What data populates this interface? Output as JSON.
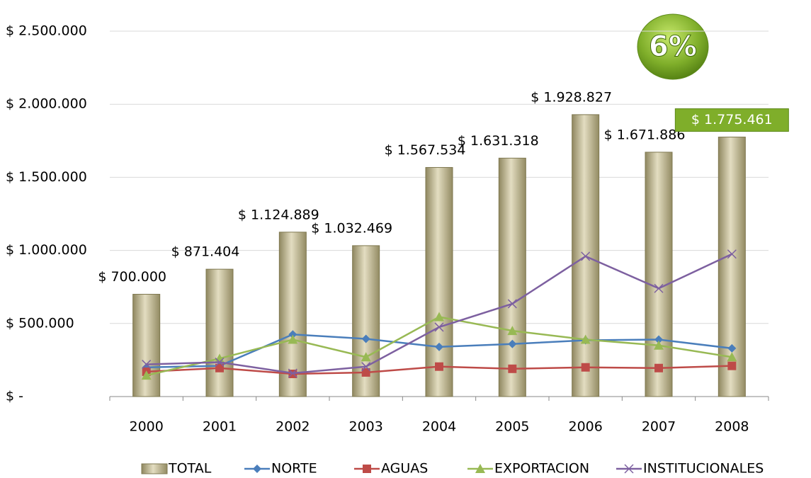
{
  "chart_data": {
    "type": "bar",
    "annotation": "6%",
    "categories": [
      "2000",
      "2001",
      "2002",
      "2003",
      "2004",
      "2005",
      "2006",
      "2007",
      "2008"
    ],
    "ylim": [
      0,
      2500000
    ],
    "yticks": [
      {
        "value": 0,
        "label": "$ -"
      },
      {
        "value": 500000,
        "label": "$ 500.000"
      },
      {
        "value": 1000000,
        "label": "$ 1.000.000"
      },
      {
        "value": 1500000,
        "label": "$ 1.500.000"
      },
      {
        "value": 2000000,
        "label": "$ 2.000.000"
      },
      {
        "value": 2500000,
        "label": "$ 2.500.000"
      }
    ],
    "grid": true,
    "legend": "bottom",
    "series": [
      {
        "name": "TOTAL",
        "type": "bar",
        "color": "#c4bd97",
        "values": [
          700000,
          871404,
          1124889,
          1032469,
          1567534,
          1631318,
          1928827,
          1671886,
          1775461
        ],
        "value_labels": [
          "$ 700.000",
          "$ 871.404",
          "$ 1.124.889",
          "$ 1.032.469",
          "$ 1.567.534",
          "$ 1.631.318",
          "$ 1.928.827",
          "$ 1.671.886",
          "$ 1.775.461"
        ]
      },
      {
        "name": "NORTE",
        "type": "line",
        "marker": "diamond",
        "color": "#4a7ebb",
        "values": [
          200000,
          210000,
          425000,
          395000,
          340000,
          360000,
          385000,
          390000,
          330000
        ]
      },
      {
        "name": "AGUAS",
        "type": "line",
        "marker": "square",
        "color": "#be4b48",
        "values": [
          170000,
          195000,
          155000,
          165000,
          205000,
          190000,
          200000,
          195000,
          210000
        ]
      },
      {
        "name": "EXPORTACION",
        "type": "line",
        "marker": "triangle",
        "color": "#98b954",
        "values": [
          145000,
          260000,
          390000,
          270000,
          545000,
          450000,
          390000,
          350000,
          270000
        ]
      },
      {
        "name": "INSTITUCIONALES",
        "type": "line",
        "marker": "x",
        "color": "#7d60a0",
        "values": [
          220000,
          235000,
          160000,
          205000,
          475000,
          635000,
          960000,
          740000,
          975000
        ]
      }
    ]
  }
}
